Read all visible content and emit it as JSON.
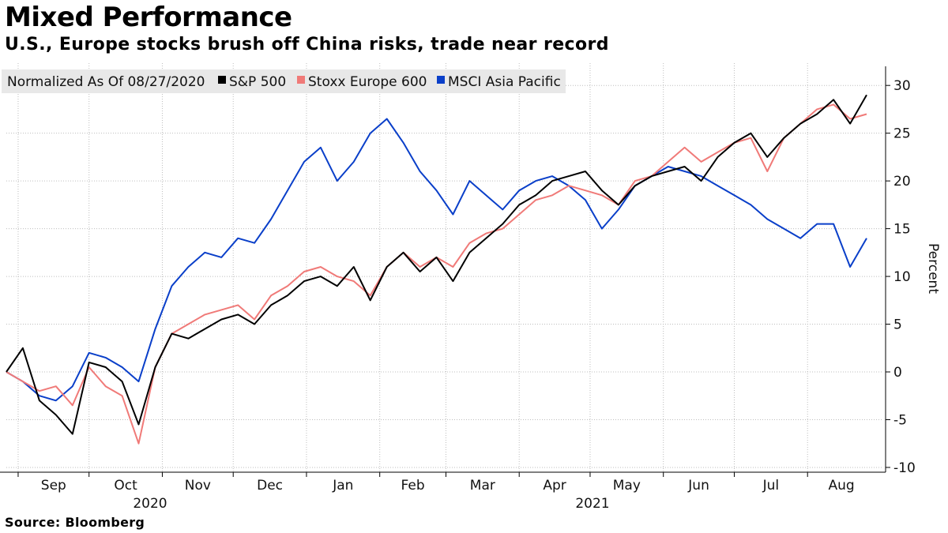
{
  "title": "Mixed Performance",
  "subtitle": "U.S., Europe stocks brush off China risks, trade near record",
  "source": "Source: Bloomberg",
  "colors": {
    "sp500": "#000000",
    "stoxx": "#f07a78",
    "msci": "#0a3fc9",
    "grid": "#bdbdbd",
    "legend_bg": "#e8e8e8"
  },
  "chart_data": {
    "type": "line",
    "title": "Mixed Performance",
    "subtitle": "U.S., Europe stocks brush off China risks, trade near record",
    "legend_title": "Normalized As Of 08/27/2020",
    "legend_placement": "top-left",
    "ylabel": "Percent",
    "ylim": [
      -10.5,
      32
    ],
    "y_ticks": [
      30,
      25,
      20,
      15,
      10,
      5,
      0,
      -5,
      -10
    ],
    "x_month_labels": [
      "Sep",
      "Oct",
      "Nov",
      "Dec",
      "Jan",
      "Feb",
      "Mar",
      "Apr",
      "May",
      "Jun",
      "Jul",
      "Aug"
    ],
    "x_year_labels": [
      "2020",
      "2021"
    ],
    "grid": true,
    "x": [
      "2020-08-27",
      "2020-09-03",
      "2020-09-10",
      "2020-09-17",
      "2020-09-24",
      "2020-10-01",
      "2020-10-08",
      "2020-10-15",
      "2020-10-22",
      "2020-10-29",
      "2020-11-05",
      "2020-11-12",
      "2020-11-19",
      "2020-11-26",
      "2020-12-03",
      "2020-12-10",
      "2020-12-17",
      "2020-12-24",
      "2020-12-31",
      "2021-01-07",
      "2021-01-14",
      "2021-01-21",
      "2021-01-28",
      "2021-02-04",
      "2021-02-11",
      "2021-02-18",
      "2021-02-25",
      "2021-03-04",
      "2021-03-11",
      "2021-03-18",
      "2021-03-25",
      "2021-04-01",
      "2021-04-08",
      "2021-04-15",
      "2021-04-22",
      "2021-04-29",
      "2021-05-06",
      "2021-05-13",
      "2021-05-20",
      "2021-05-27",
      "2021-06-03",
      "2021-06-10",
      "2021-06-17",
      "2021-06-24",
      "2021-07-01",
      "2021-07-08",
      "2021-07-15",
      "2021-07-22",
      "2021-07-29",
      "2021-08-05",
      "2021-08-12",
      "2021-08-19",
      "2021-08-26"
    ],
    "series": [
      {
        "name": "S&P 500",
        "key": "sp500",
        "values": [
          0,
          2.5,
          -3.0,
          -4.5,
          -6.5,
          1.0,
          0.5,
          -1.0,
          -5.5,
          0.5,
          4.0,
          3.5,
          4.5,
          5.5,
          6.0,
          5.0,
          7.0,
          8.0,
          9.5,
          10.0,
          9.0,
          11.0,
          7.5,
          11.0,
          12.5,
          10.5,
          12.0,
          9.5,
          12.5,
          14.0,
          15.5,
          17.5,
          18.5,
          20.0,
          20.5,
          21.0,
          19.0,
          17.5,
          19.5,
          20.5,
          21.0,
          21.5,
          20.0,
          22.5,
          24.0,
          25.0,
          22.5,
          24.5,
          26.0,
          27.0,
          28.5,
          26.0,
          29.0
        ]
      },
      {
        "name": "Stoxx Europe 600",
        "key": "stoxx",
        "values": [
          0,
          -1.0,
          -2.0,
          -1.5,
          -3.5,
          0.5,
          -1.5,
          -2.5,
          -7.5,
          0.5,
          4.0,
          5.0,
          6.0,
          6.5,
          7.0,
          5.5,
          8.0,
          9.0,
          10.5,
          11.0,
          10.0,
          9.5,
          8.0,
          11.0,
          12.5,
          11.0,
          12.0,
          11.0,
          13.5,
          14.5,
          15.0,
          16.5,
          18.0,
          18.5,
          19.5,
          19.0,
          18.5,
          17.5,
          20.0,
          20.5,
          22.0,
          23.5,
          22.0,
          23.0,
          24.0,
          24.5,
          21.0,
          24.5,
          26.0,
          27.5,
          28.0,
          26.5,
          27.0
        ]
      },
      {
        "name": "MSCI Asia Pacific",
        "key": "msci",
        "values": [
          0,
          -1.0,
          -2.5,
          -3.0,
          -1.5,
          2.0,
          1.5,
          0.5,
          -1.0,
          4.5,
          9.0,
          11.0,
          12.5,
          12.0,
          14.0,
          13.5,
          16.0,
          19.0,
          22.0,
          23.5,
          20.0,
          22.0,
          25.0,
          26.5,
          24.0,
          21.0,
          19.0,
          16.5,
          20.0,
          18.5,
          17.0,
          19.0,
          20.0,
          20.5,
          19.5,
          18.0,
          15.0,
          17.0,
          19.5,
          20.5,
          21.5,
          21.0,
          20.5,
          19.5,
          18.5,
          17.5,
          16.0,
          15.0,
          14.0,
          15.5,
          15.5,
          11.0,
          14.0
        ]
      }
    ]
  }
}
